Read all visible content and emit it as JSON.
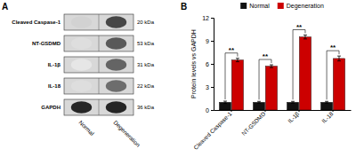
{
  "chart_data": [
    {
      "type": "blot",
      "title": "A",
      "categories": [
        "Cleaved Caspase-1",
        "NT-GSDMD",
        "IL-1β",
        "IL-18",
        "GAPDH"
      ],
      "annotations": [
        "20 kDa",
        "53 kDa",
        "31 kDa",
        "22 kDa",
        "36 kDa"
      ],
      "series": [
        {
          "name": "Normal",
          "values": [
            0.28,
            0.22,
            0.18,
            0.22,
            0.88
          ]
        },
        {
          "name": "Degeneration",
          "values": [
            0.78,
            0.72,
            0.68,
            0.65,
            0.88
          ]
        }
      ]
    },
    {
      "type": "bar",
      "title": "B",
      "categories": [
        "Cleaved Caspase-1",
        "NT-GSDMD",
        "IL-1β",
        "IL-18"
      ],
      "series": [
        {
          "name": "Normal",
          "color": "#111111",
          "values": [
            1.0,
            1.0,
            1.0,
            1.0
          ],
          "errors": [
            0.15,
            0.12,
            0.12,
            0.12
          ]
        },
        {
          "name": "Degeneration",
          "color": "#cc0000",
          "values": [
            6.5,
            5.7,
            9.5,
            6.7
          ],
          "errors": [
            0.22,
            0.18,
            0.25,
            0.32
          ]
        }
      ],
      "annotations": [
        "**",
        "**",
        "**",
        "**"
      ],
      "ylabel": "Protein levels vs GAPDH",
      "ylim": [
        0,
        12
      ],
      "yticks": [
        0,
        3,
        6,
        9,
        12
      ],
      "legend": "top",
      "grid": false
    }
  ]
}
